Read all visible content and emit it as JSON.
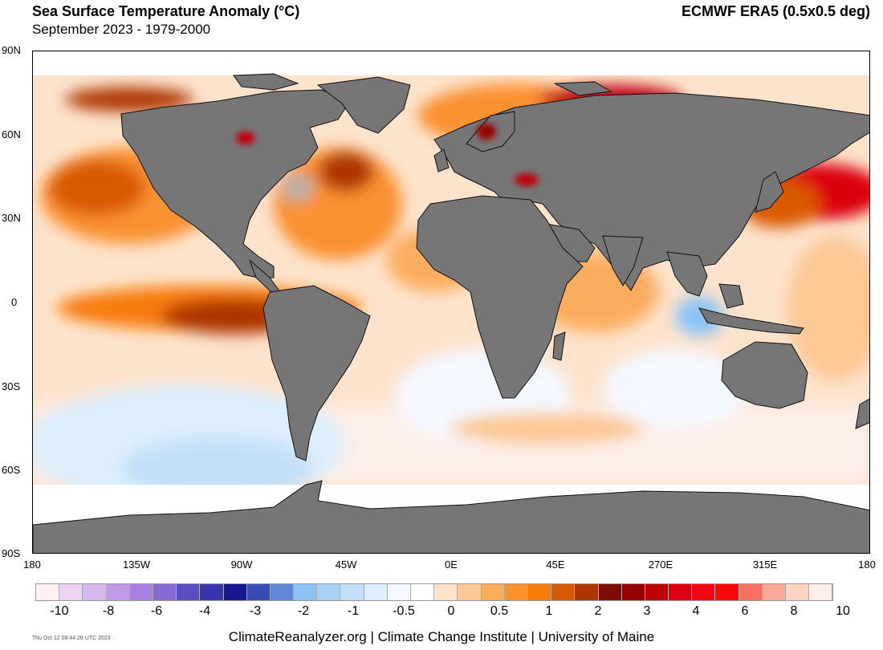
{
  "header": {
    "title": "Sea Surface Temperature Anomaly (°C)",
    "subtitle": "September 2023 - 1979-2000",
    "source": "ECMWF ERA5 (0.5x0.5 deg)"
  },
  "axes": {
    "lat_labels": [
      "90N",
      "60N",
      "30N",
      "0",
      "30S",
      "60S",
      "90S"
    ],
    "lon_labels": [
      "180",
      "135W",
      "90W",
      "45W",
      "0E",
      "45E",
      "270E",
      "315E",
      "180"
    ]
  },
  "colorbar": {
    "colors": [
      "#fff0f5",
      "#ead4f2",
      "#d8b8ec",
      "#c299e6",
      "#a97ee0",
      "#8868d2",
      "#5b4ec0",
      "#3a35aa",
      "#16168e",
      "#3a4cb4",
      "#5f87d8",
      "#8cc4f6",
      "#a8d2f4",
      "#c4e0f8",
      "#ddeefc",
      "#f4f8ff",
      "#ffffff",
      "#fde3cc",
      "#fcc894",
      "#fbad5e",
      "#fa9230",
      "#f77c0a",
      "#d95a06",
      "#ae3606",
      "#7e0d06",
      "#990000",
      "#c00008",
      "#dc0010",
      "#f20812",
      "#fd0808",
      "#f87060",
      "#fba898",
      "#fdd4c4",
      "#fdeee8"
    ],
    "labels": [
      "-10",
      "-8",
      "-6",
      "-4",
      "-3",
      "-2",
      "-1",
      "-0.5",
      "0",
      "0.5",
      "1",
      "2",
      "3",
      "4",
      "6",
      "8",
      "10"
    ]
  },
  "footer": {
    "credit": "ClimateReanalyzer.org | Climate Change Institute | University of Maine",
    "timestamp": "Thu Oct 12 08:44:28 UTC 2023"
  },
  "colors": {
    "land": "#767676",
    "ice": "#ffffff",
    "background_ocean": "#fde3cc"
  }
}
